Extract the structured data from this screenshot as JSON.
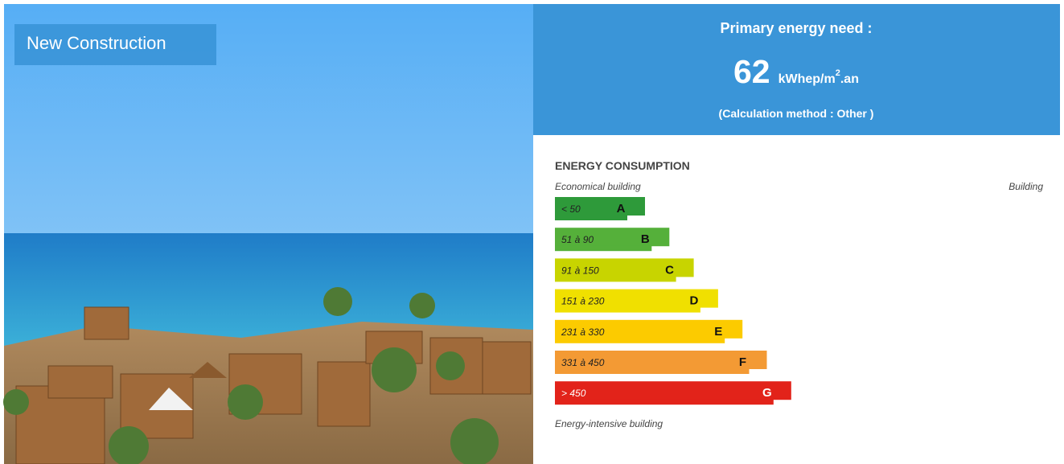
{
  "photo": {
    "label": "New Construction"
  },
  "header": {
    "title": "Primary energy need :",
    "value": "62",
    "unit": "kWhep/m",
    "unit_sup": "2",
    "unit_suffix": ".an",
    "method": "(Calculation method : Other )"
  },
  "consumption": {
    "title": "ENERGY CONSUMPTION",
    "top_left": "Economical building",
    "top_right": "Building",
    "bottom": "Energy-intensive building",
    "ratings": [
      {
        "range": "< 50",
        "letter": "A"
      },
      {
        "range": "51 à 90",
        "letter": "B"
      },
      {
        "range": "91 à 150",
        "letter": "C"
      },
      {
        "range": "151 à 230",
        "letter": "D"
      },
      {
        "range": "231 à 330",
        "letter": "E"
      },
      {
        "range": "331 à 450",
        "letter": "F"
      },
      {
        "range": "> 450",
        "letter": "G"
      }
    ]
  }
}
